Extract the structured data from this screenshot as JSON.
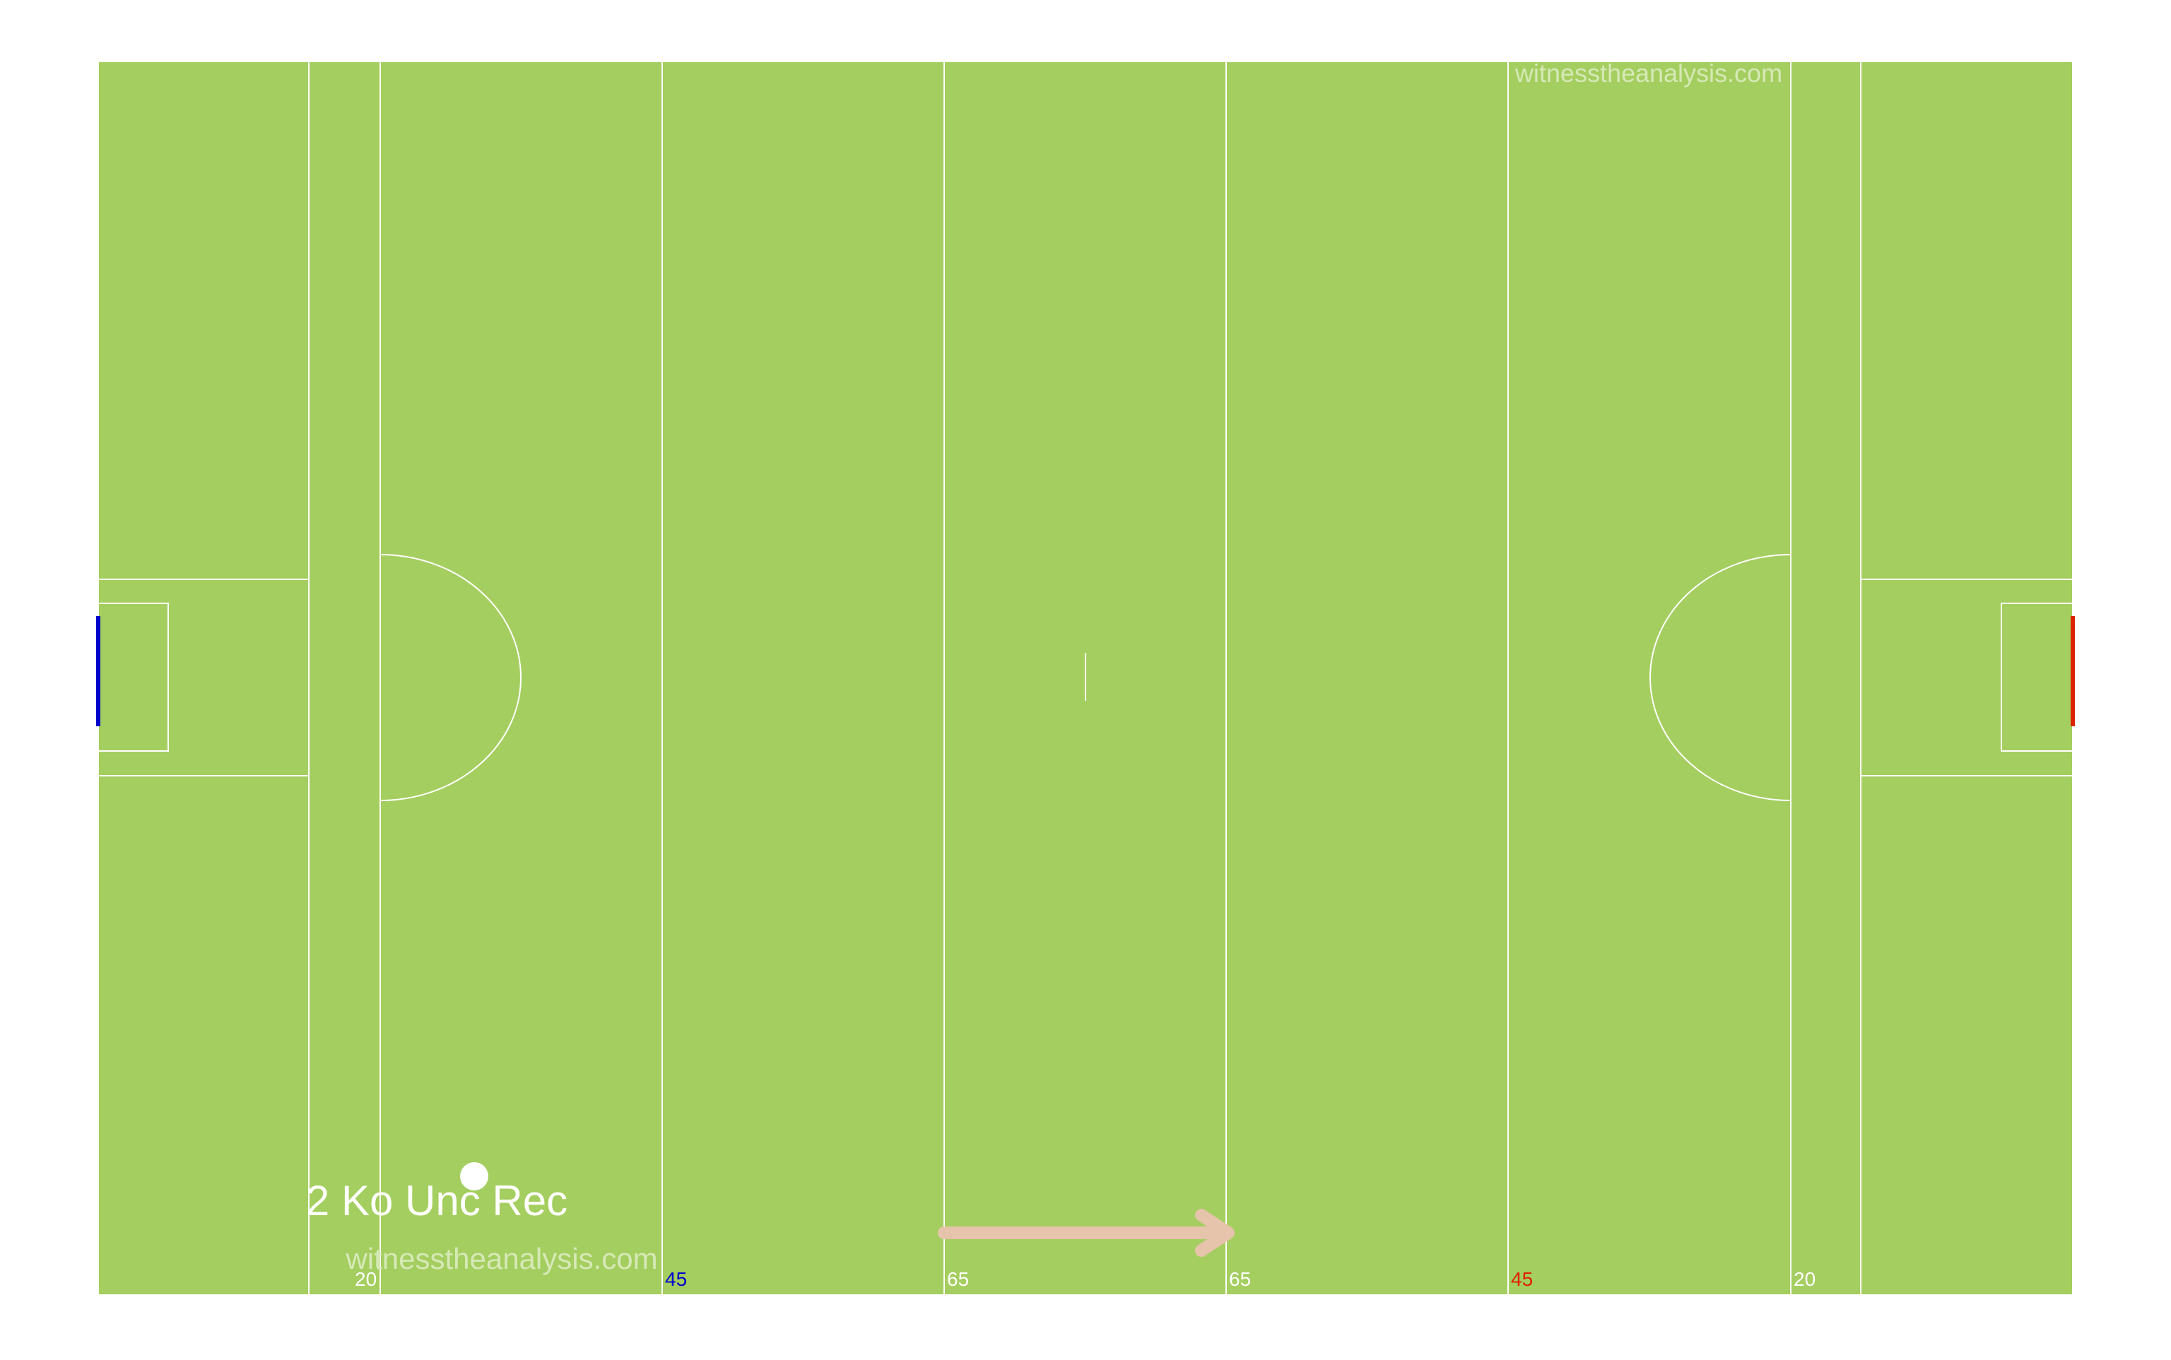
{
  "watermarks": {
    "top": "witnesstheanalysis.com",
    "bottom": "witnesstheanalysis.com"
  },
  "event_label": "2 Ko Unc Rec",
  "markers": {
    "left_20": "20",
    "left_45": "45",
    "left_65": "65",
    "right_65": "65",
    "right_45": "45",
    "right_20": "20"
  },
  "colors": {
    "pitch": "#a4ce5f",
    "lines": "#ffffff",
    "left_goal": "#0000cc",
    "right_goal": "#dd2200",
    "left_45_label": "#0000cc",
    "right_45_label": "#dd2200",
    "arrow": "#e6c3ab",
    "watermark": "#d6e9b6"
  }
}
